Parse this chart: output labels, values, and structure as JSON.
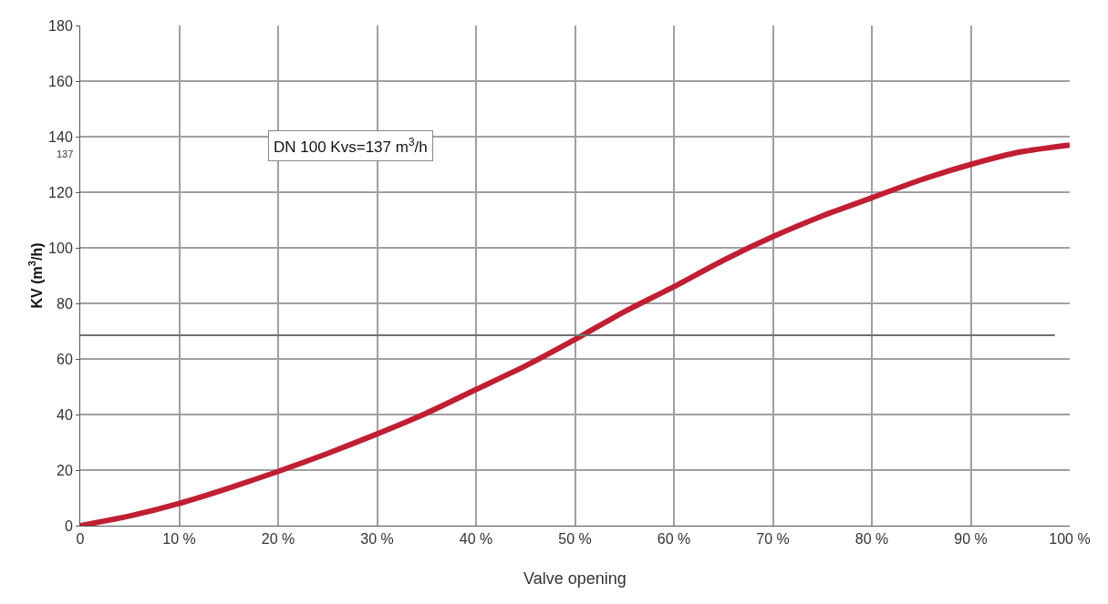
{
  "chart_data": {
    "type": "line",
    "xlabel": "Valve opening",
    "ylabel": "KV (m$^{3}$/h)",
    "x": [
      0,
      5,
      10,
      15,
      20,
      25,
      30,
      35,
      40,
      45,
      50,
      55,
      60,
      65,
      70,
      75,
      80,
      85,
      90,
      95,
      100
    ],
    "series": [
      {
        "color": "#c01f33",
        "values": [
          0,
          3.5,
          8,
          13.5,
          19.5,
          26,
          33,
          40.5,
          49,
          57.5,
          67,
          77,
          86,
          95.5,
          104,
          111.5,
          118,
          124.5,
          130,
          134.5,
          137
        ]
      }
    ],
    "xlim": [
      0,
      100
    ],
    "xticks": [
      0,
      {
        "value": 10,
        "label": "10 %"
      },
      {
        "value": 20,
        "label": "20 %"
      },
      {
        "value": 30,
        "label": "30 %"
      },
      {
        "value": 40,
        "label": "40 %"
      },
      {
        "value": 50,
        "label": "50 %"
      },
      {
        "value": 60,
        "label": "60 %"
      },
      {
        "value": 70,
        "label": "70 %"
      },
      {
        "value": 80,
        "label": "80 %"
      },
      {
        "value": 90,
        "label": "90 %"
      },
      {
        "value": 100,
        "label": "100 %"
      }
    ],
    "ylim": [
      0,
      180
    ],
    "yticks": [
      0,
      20,
      40,
      60,
      80,
      100,
      120,
      140,
      160,
      180
    ],
    "ref_lines": [
      {
        "axis": "y",
        "value": 68.5,
        "color": "#707070"
      }
    ],
    "annotations": [
      "DN 100 Kvs=137 m$^{3}$/h",
      "137"
    ],
    "grid": true,
    "marker": "none",
    "line_style": "solid"
  }
}
